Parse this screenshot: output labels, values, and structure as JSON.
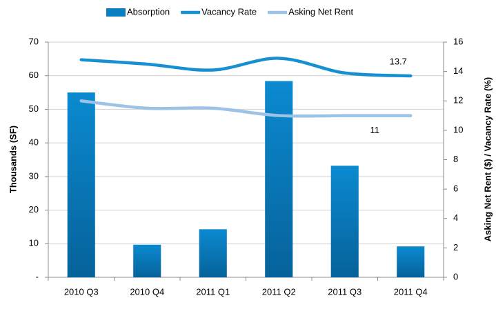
{
  "chart_data": {
    "type": "bar_line",
    "categories": [
      "2010 Q3",
      "2010 Q4",
      "2011 Q1",
      "2011 Q2",
      "2011 Q3",
      "2011 Q4"
    ],
    "y_label": "Thousands (SF)",
    "y2_label": "Asking Net Rent ($) / Vacancy Rate (%)",
    "ylim": [
      0,
      70
    ],
    "yticks": [
      {
        "value": 0,
        "label": "-"
      },
      10,
      20,
      30,
      40,
      50,
      60,
      70
    ],
    "y2lim": [
      0,
      16
    ],
    "y2ticks": [
      0,
      2,
      4,
      6,
      8,
      10,
      12,
      14,
      16
    ],
    "grid": true,
    "legend": "top",
    "series": [
      {
        "name": "Absorption",
        "type": "bar",
        "color": "#0a7fc0",
        "values": [
          55,
          9.7,
          14.3,
          58.4,
          33.2,
          9.2
        ]
      },
      {
        "name": "Vacancy Rate",
        "type": "line",
        "axis": "y2",
        "color": "#1690d2",
        "values": [
          14.8,
          14.5,
          14.1,
          14.9,
          13.9,
          13.7
        ]
      },
      {
        "name": "Asking Net Rent",
        "type": "line",
        "axis": "y2",
        "color": "#9cc2e5",
        "values": [
          12.0,
          11.5,
          11.5,
          11.0,
          11.0,
          11
        ]
      }
    ]
  }
}
